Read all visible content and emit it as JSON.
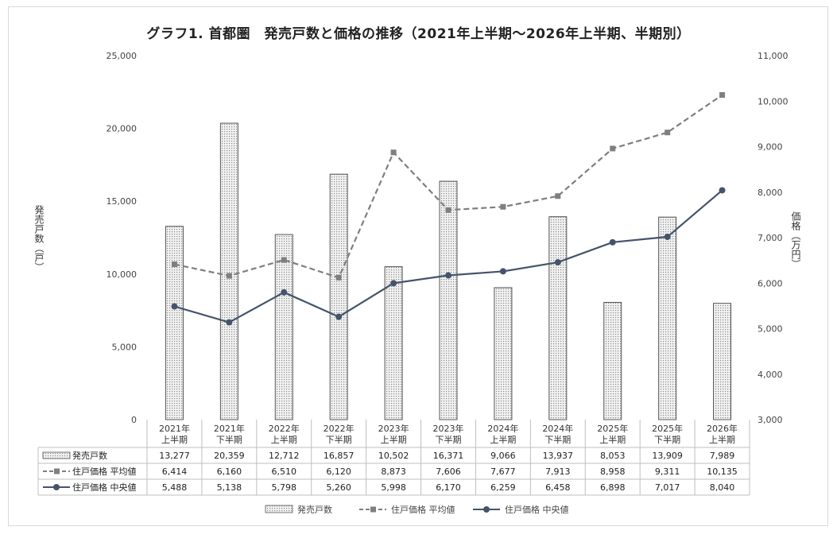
{
  "title": "グラフ1. 首都圏　発売戸数と価格の推移（2021年上半期～2026年上半期、半期別）",
  "y_left_label": "発売戸数（戸）",
  "y_right_label": "価格（万円）",
  "colors": {
    "bar_fill": "#dcdcdc",
    "bar_stroke": "#555555",
    "avg": "#7f7f7f",
    "median": "#44546a"
  },
  "chart_data": {
    "type": "bar",
    "categories": [
      [
        "2021年",
        "上半期"
      ],
      [
        "2021年",
        "下半期"
      ],
      [
        "2022年",
        "上半期"
      ],
      [
        "2022年",
        "下半期"
      ],
      [
        "2023年",
        "上半期"
      ],
      [
        "2023年",
        "下半期"
      ],
      [
        "2024年",
        "上半期"
      ],
      [
        "2024年",
        "下半期"
      ],
      [
        "2025年",
        "上半期"
      ],
      [
        "2025年",
        "下半期"
      ],
      [
        "2026年",
        "上半期"
      ]
    ],
    "series": [
      {
        "name": "発売戸数",
        "kind": "bar",
        "axis": "left",
        "values": [
          13277,
          20359,
          12712,
          16857,
          10502,
          16371,
          9066,
          13937,
          8053,
          13909,
          7989
        ],
        "labels": [
          "13,277",
          "20,359",
          "12,712",
          "16,857",
          "10,502",
          "16,371",
          "9,066",
          "13,937",
          "8,053",
          "13,909",
          "7,989"
        ]
      },
      {
        "name": "住戸価格 平均値",
        "kind": "line-dashed",
        "axis": "right",
        "values": [
          6414,
          6160,
          6510,
          6120,
          8873,
          7606,
          7677,
          7913,
          8958,
          9311,
          10135
        ],
        "labels": [
          "6,414",
          "6,160",
          "6,510",
          "6,120",
          "8,873",
          "7,606",
          "7,677",
          "7,913",
          "8,958",
          "9,311",
          "10,135"
        ]
      },
      {
        "name": "住戸価格 中央値",
        "kind": "line",
        "axis": "right",
        "values": [
          5488,
          5138,
          5798,
          5260,
          5998,
          6170,
          6259,
          6458,
          6898,
          7017,
          8040
        ],
        "labels": [
          "5,488",
          "5,138",
          "5,798",
          "5,260",
          "5,998",
          "6,170",
          "6,259",
          "6,458",
          "6,898",
          "7,017",
          "8,040"
        ]
      }
    ],
    "y_left": {
      "min": 0,
      "max": 25000,
      "ticks": [
        "0",
        "5,000",
        "10,000",
        "15,000",
        "20,000",
        "25,000"
      ]
    },
    "y_right": {
      "min": 3000,
      "max": 11000,
      "ticks": [
        "3,000",
        "4,000",
        "5,000",
        "6,000",
        "7,000",
        "8,000",
        "9,000",
        "10,000",
        "11,000"
      ]
    },
    "legend_placement": "bottom",
    "grid": false
  }
}
